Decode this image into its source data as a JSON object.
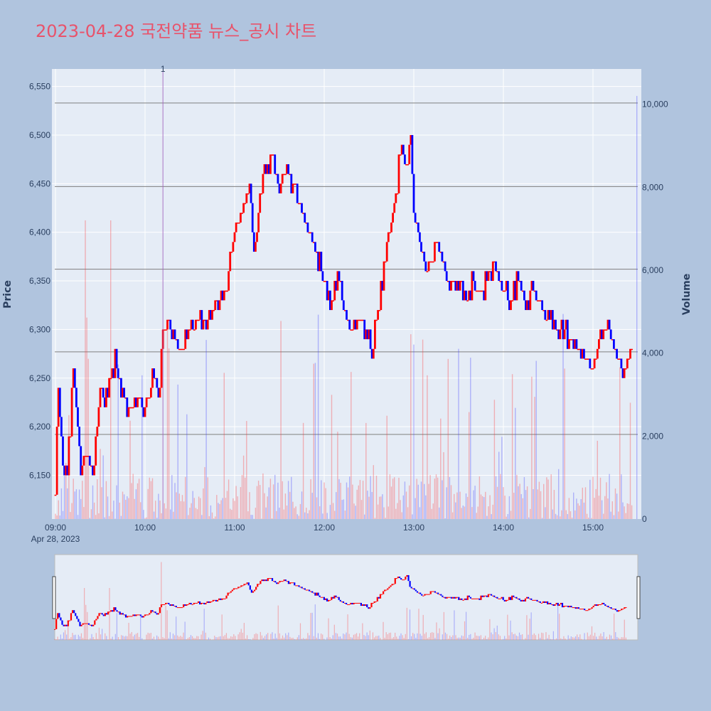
{
  "title": "2023-04-28 국전약품 뉴스_공시 차트",
  "colors": {
    "background": "#b0c4de",
    "plot_bg": "#e5ecf6",
    "up": "#ff0000",
    "down": "#0000ff",
    "title": "#e8536b",
    "hline": "#7f7f7f"
  },
  "chart_data": {
    "type": "candlestick",
    "title": "2023-04-28 국전약품 뉴스_공시 차트",
    "ylabel": "Price",
    "y2label": "Volume",
    "ylim": [
      6105,
      6568
    ],
    "y2lim": [
      0,
      10850
    ],
    "y_ticks": [
      "6,150",
      "6,200",
      "6,250",
      "6,300",
      "6,350",
      "6,400",
      "6,450",
      "6,500",
      "6,550"
    ],
    "y2_ticks": [
      "0",
      "2,000",
      "4,000",
      "6,000",
      "8,000",
      "10,000"
    ],
    "x_ticks": [
      "09:00",
      "10:00",
      "11:00",
      "12:00",
      "13:00",
      "14:00",
      "15:00"
    ],
    "x_date_label": "Apr 28, 2023",
    "x_range": [
      "09:00",
      "15:30"
    ],
    "annotation": "1",
    "annotation_time": "10:12",
    "horizontal_lines": [
      6533,
      6447,
      6362,
      6277,
      6192
    ],
    "price_path": [
      [
        "09:00",
        6130
      ],
      [
        "09:02",
        6240
      ],
      [
        "09:05",
        6170
      ],
      [
        "09:08",
        6150
      ],
      [
        "09:10",
        6200
      ],
      [
        "09:12",
        6270
      ],
      [
        "09:15",
        6190
      ],
      [
        "09:17",
        6150
      ],
      [
        "09:20",
        6180
      ],
      [
        "09:25",
        6150
      ],
      [
        "09:30",
        6240
      ],
      [
        "09:33",
        6220
      ],
      [
        "09:40",
        6270
      ],
      [
        "09:45",
        6230
      ],
      [
        "09:50",
        6220
      ],
      [
        "09:55",
        6230
      ],
      [
        "10:00",
        6220
      ],
      [
        "10:05",
        6250
      ],
      [
        "10:10",
        6240
      ],
      [
        "10:12",
        6300
      ],
      [
        "10:15",
        6310
      ],
      [
        "10:20",
        6290
      ],
      [
        "10:25",
        6280
      ],
      [
        "10:30",
        6300
      ],
      [
        "10:40",
        6310
      ],
      [
        "10:50",
        6320
      ],
      [
        "10:55",
        6350
      ],
      [
        "11:00",
        6400
      ],
      [
        "11:05",
        6420
      ],
      [
        "11:10",
        6450
      ],
      [
        "11:13",
        6380
      ],
      [
        "11:16",
        6420
      ],
      [
        "11:20",
        6460
      ],
      [
        "11:25",
        6480
      ],
      [
        "11:30",
        6440
      ],
      [
        "11:35",
        6470
      ],
      [
        "11:40",
        6440
      ],
      [
        "11:45",
        6420
      ],
      [
        "11:50",
        6400
      ],
      [
        "11:55",
        6380
      ],
      [
        "12:00",
        6350
      ],
      [
        "12:05",
        6330
      ],
      [
        "12:10",
        6350
      ],
      [
        "12:15",
        6310
      ],
      [
        "12:20",
        6300
      ],
      [
        "12:25",
        6310
      ],
      [
        "12:30",
        6290
      ],
      [
        "12:32",
        6270
      ],
      [
        "12:35",
        6310
      ],
      [
        "12:40",
        6360
      ],
      [
        "12:45",
        6410
      ],
      [
        "12:48",
        6440
      ],
      [
        "12:52",
        6490
      ],
      [
        "12:55",
        6470
      ],
      [
        "12:58",
        6500
      ],
      [
        "13:00",
        6420
      ],
      [
        "13:05",
        6380
      ],
      [
        "13:10",
        6360
      ],
      [
        "13:15",
        6400
      ],
      [
        "13:20",
        6360
      ],
      [
        "13:25",
        6350
      ],
      [
        "13:30",
        6340
      ],
      [
        "13:35",
        6330
      ],
      [
        "13:40",
        6350
      ],
      [
        "13:45",
        6340
      ],
      [
        "13:50",
        6350
      ],
      [
        "13:55",
        6360
      ],
      [
        "14:00",
        6340
      ],
      [
        "14:05",
        6330
      ],
      [
        "14:10",
        6350
      ],
      [
        "14:15",
        6330
      ],
      [
        "14:20",
        6340
      ],
      [
        "14:25",
        6320
      ],
      [
        "14:30",
        6310
      ],
      [
        "14:35",
        6300
      ],
      [
        "14:40",
        6300
      ],
      [
        "14:45",
        6290
      ],
      [
        "14:50",
        6280
      ],
      [
        "14:55",
        6270
      ],
      [
        "15:00",
        6260
      ],
      [
        "15:05",
        6290
      ],
      [
        "15:10",
        6300
      ],
      [
        "15:15",
        6280
      ],
      [
        "15:18",
        6260
      ],
      [
        "15:20",
        6250
      ],
      [
        "15:25",
        6280
      ]
    ]
  },
  "range_slider": {
    "present": true
  }
}
